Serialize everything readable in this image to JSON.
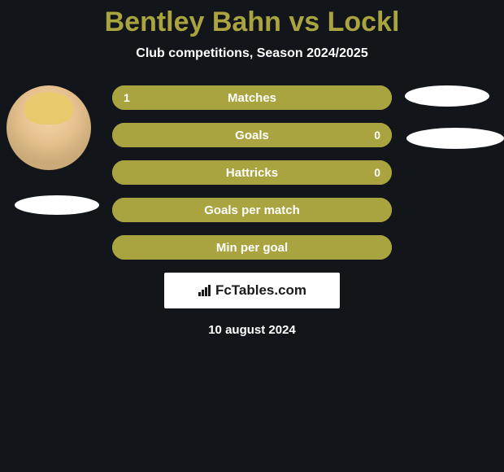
{
  "title": {
    "text": "Bentley Bahn vs Lockl",
    "color": "#a9a43f",
    "fontsize": 34
  },
  "subtitle": {
    "text": "Club competitions, Season 2024/2025",
    "color": "#ffffff",
    "fontsize": 16
  },
  "colors": {
    "background": "#12161a",
    "bar_fill": "#a9a43f",
    "bar_border": "#a9a43f",
    "text": "#ffffff",
    "ellipse": "#ffffff"
  },
  "bars": [
    {
      "label": "Matches",
      "left_value": "1",
      "right_value": "",
      "fill_pct": 100
    },
    {
      "label": "Goals",
      "left_value": "",
      "right_value": "0",
      "fill_pct": 100
    },
    {
      "label": "Hattricks",
      "left_value": "",
      "right_value": "0",
      "fill_pct": 100
    },
    {
      "label": "Goals per match",
      "left_value": "",
      "right_value": "",
      "fill_pct": 100
    },
    {
      "label": "Min per goal",
      "left_value": "",
      "right_value": "",
      "fill_pct": 100
    }
  ],
  "logo": {
    "text": "FcTables.com"
  },
  "date": {
    "text": "10 august 2024"
  }
}
